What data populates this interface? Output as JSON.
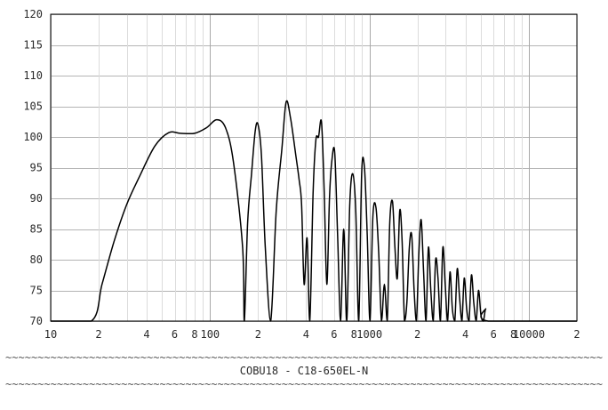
{
  "chart_data": {
    "type": "line",
    "title": "COBU18 - C18-650EL-N",
    "xlabel": "",
    "ylabel": "",
    "xscale": "log",
    "xlim": [
      10,
      20000
    ],
    "ylim": [
      70,
      120
    ],
    "grid": true,
    "yticks": [
      70,
      75,
      80,
      85,
      90,
      95,
      100,
      105,
      110,
      115,
      120
    ],
    "xticks": [
      {
        "value": 10,
        "label": "10"
      },
      {
        "value": 20,
        "label": "2"
      },
      {
        "value": 40,
        "label": "4"
      },
      {
        "value": 60,
        "label": "6"
      },
      {
        "value": 80,
        "label": "8"
      },
      {
        "value": 100,
        "label": "100"
      },
      {
        "value": 200,
        "label": "2"
      },
      {
        "value": 400,
        "label": "4"
      },
      {
        "value": 600,
        "label": "6"
      },
      {
        "value": 800,
        "label": "8"
      },
      {
        "value": 1000,
        "label": "1000"
      },
      {
        "value": 2000,
        "label": "2"
      },
      {
        "value": 4000,
        "label": "4"
      },
      {
        "value": 6000,
        "label": "6"
      },
      {
        "value": 8000,
        "label": "8"
      },
      {
        "value": 10000,
        "label": "10000"
      },
      {
        "value": 20000,
        "label": "2"
      }
    ],
    "series": [
      {
        "x": [
          18,
          21,
          25,
          30,
          36,
          45,
          55,
          65,
          80,
          95,
          110,
          125,
          140,
          160,
          164,
          172,
          182,
          192,
          200,
          210,
          222,
          240,
          260,
          282,
          300,
          320,
          345,
          362,
          375,
          389,
          406,
          422,
          443,
          461,
          479,
          500,
          520,
          540,
          561,
          580,
          605,
          631,
          659,
          689,
          720,
          752,
          785,
          820,
          856,
          893,
          930,
          968,
          1007,
          1050,
          1098,
          1143,
          1190,
          1240,
          1292,
          1340,
          1394,
          1444,
          1495,
          1548,
          1602,
          1658,
          1716,
          1778,
          1840,
          1905,
          1970,
          2040,
          2110,
          2185,
          2262,
          2342,
          2425,
          2510,
          2600,
          2690,
          2785,
          2885,
          2985,
          3090,
          3200,
          3310,
          3430,
          3550,
          3670,
          3800,
          3930,
          4070,
          4210,
          4360,
          4510,
          4670,
          4830,
          5000,
          5180,
          5360,
          5550,
          20000
        ],
        "y": [
          70,
          76,
          83,
          89,
          93.5,
          98.5,
          100.7,
          100.6,
          100.6,
          101.5,
          102.8,
          101.5,
          96,
          82,
          70,
          86,
          94,
          101,
          102,
          97,
          82,
          70,
          88,
          98,
          105.7,
          103,
          97,
          93,
          89,
          76,
          83.5,
          70,
          91,
          99.5,
          100,
          102.4,
          91,
          76,
          90,
          96,
          97.5,
          84,
          70,
          85,
          70,
          89,
          94,
          88,
          70,
          94,
          95,
          84,
          70,
          87,
          88.5,
          81,
          70,
          76,
          70,
          86,
          89.5,
          82,
          77,
          88,
          83,
          70,
          73,
          82,
          84,
          75,
          70,
          81,
          86.5,
          78,
          70,
          82,
          75,
          70,
          80,
          77,
          70,
          82,
          76,
          70,
          78,
          72,
          70,
          78.5,
          74,
          70,
          77,
          72,
          70,
          77.5,
          73,
          70,
          75,
          71,
          70,
          72,
          70,
          70
        ]
      }
    ]
  }
}
